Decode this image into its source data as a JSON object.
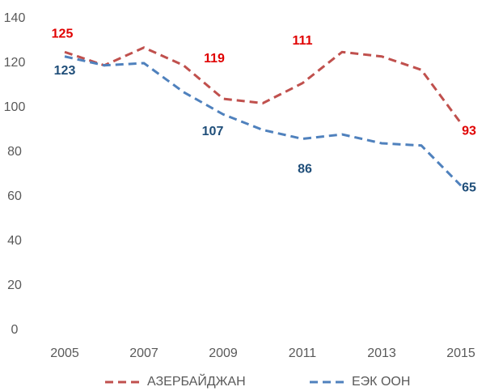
{
  "chart_data": {
    "type": "line",
    "categories": [
      "2005",
      null,
      "2007",
      null,
      "2009",
      null,
      "2011",
      null,
      "2013",
      null,
      "2015"
    ],
    "series": [
      {
        "name": "АЗЕРБАЙДЖАН",
        "color": "#c0504d",
        "values": [
          125,
          119,
          127,
          119,
          104,
          102,
          111,
          125,
          123,
          117,
          93
        ]
      },
      {
        "name": "ЕЭК ООН",
        "color": "#4f81bd",
        "values": [
          123,
          119,
          120,
          107,
          97,
          90,
          86,
          88,
          84,
          83,
          65
        ]
      }
    ],
    "ylim": [
      0,
      140
    ],
    "yticks": [
      0,
      20,
      40,
      60,
      80,
      100,
      120,
      140
    ],
    "legend": "bottom"
  }
}
